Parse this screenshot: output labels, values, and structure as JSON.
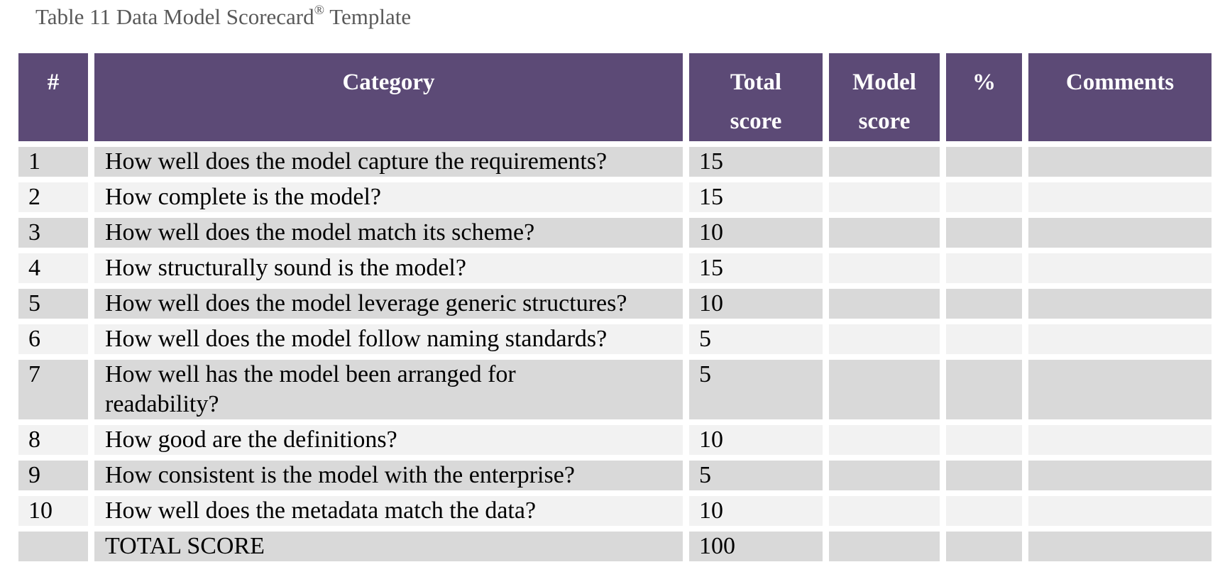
{
  "caption": {
    "text": "Table 11 Data Model Scorecard",
    "registered_mark": "®",
    "suffix": " Template"
  },
  "table": {
    "headers": {
      "num": "#",
      "category": "Category",
      "total_line1": "Total",
      "total_line2": "score",
      "model_line1": "Model",
      "model_line2": "score",
      "percent": "%",
      "comments": "Comments"
    },
    "rows": [
      {
        "num": "1",
        "category": "How well does the model capture the requirements?",
        "total": "15",
        "model": "",
        "percent": "",
        "comments": ""
      },
      {
        "num": "2",
        "category": "How complete is the model?",
        "total": "15",
        "model": "",
        "percent": "",
        "comments": ""
      },
      {
        "num": "3",
        "category": "How well does the model match its scheme?",
        "total": "10",
        "model": "",
        "percent": "",
        "comments": ""
      },
      {
        "num": "4",
        "category": "How structurally sound is the model?",
        "total": "15",
        "model": "",
        "percent": "",
        "comments": ""
      },
      {
        "num": "5",
        "category": "How well does the model leverage generic structures?",
        "total": "10",
        "model": "",
        "percent": "",
        "comments": ""
      },
      {
        "num": "6",
        "category": "How well does the model follow naming standards?",
        "total": "5",
        "model": "",
        "percent": "",
        "comments": ""
      },
      {
        "num": "7",
        "category_line1": "How well has the model been arranged for",
        "category_line2": "readability?",
        "total": "5",
        "model": "",
        "percent": "",
        "comments": ""
      },
      {
        "num": "8",
        "category": "How good are the definitions?",
        "total": "10",
        "model": "",
        "percent": "",
        "comments": ""
      },
      {
        "num": "9",
        "category": "How consistent is the model with the enterprise?",
        "total": "5",
        "model": "",
        "percent": "",
        "comments": ""
      },
      {
        "num": "10",
        "category": "How well does the metadata match the data?",
        "total": "10",
        "model": "",
        "percent": "",
        "comments": ""
      }
    ],
    "total_row": {
      "num": "",
      "category": "TOTAL SCORE",
      "total": "100",
      "model": "",
      "percent": "",
      "comments": ""
    }
  },
  "colors": {
    "header_bg": "#5c4a76",
    "row_dark": "#d9d9d9",
    "row_light": "#f2f2f2",
    "caption_text": "#595959"
  }
}
